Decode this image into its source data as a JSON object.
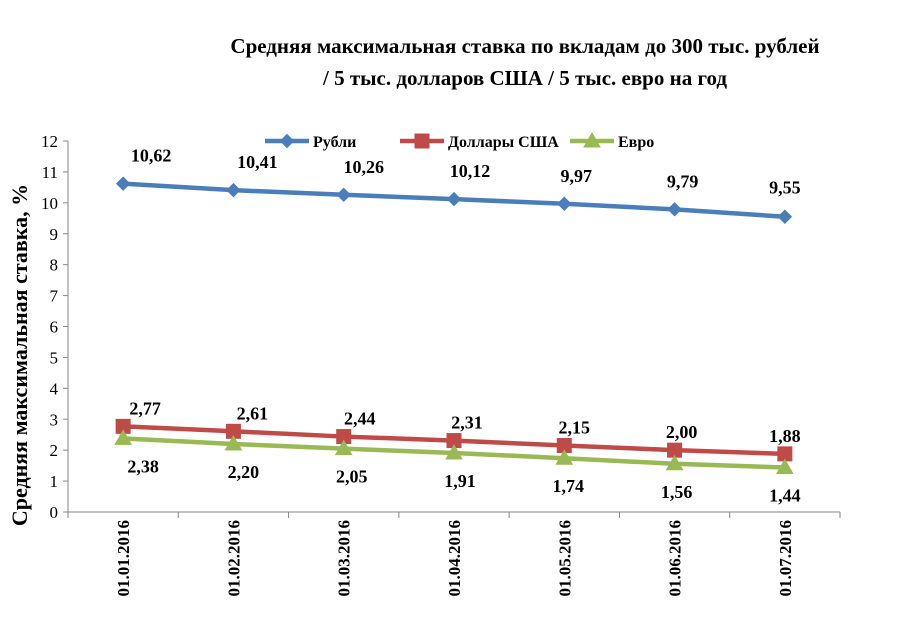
{
  "chart_data": {
    "type": "line",
    "title_lines": [
      "Средняя максимальная ставка по вкладам до 300 тыс. рублей",
      "/ 5 тыс. долларов США / 5 тыс. евро на год"
    ],
    "xlabel": "",
    "ylabel": "Средняя максимальная ставка, %",
    "ylim": [
      0,
      12
    ],
    "yticks": [
      0,
      1,
      2,
      3,
      4,
      5,
      6,
      7,
      8,
      9,
      10,
      11,
      12
    ],
    "grid": false,
    "legend_position": "top",
    "categories": [
      "01.01.2016",
      "01.02.2016",
      "01.03.2016",
      "01.04.2016",
      "01.05.2016",
      "01.06.2016",
      "01.07.2016"
    ],
    "series": [
      {
        "name": "Рубли",
        "color": "#4a7ebb",
        "marker": "diamond",
        "values": [
          10.62,
          10.41,
          10.26,
          10.12,
          9.97,
          9.79,
          9.55
        ],
        "labels": [
          "10,62",
          "10,41",
          "10,26",
          "10,12",
          "9,97",
          "9,79",
          "9,55"
        ],
        "label_position": "above"
      },
      {
        "name": "Доллары  США",
        "color": "#be4b48",
        "marker": "square",
        "values": [
          2.77,
          2.61,
          2.44,
          2.31,
          2.15,
          2.0,
          1.88
        ],
        "labels": [
          "2,77",
          "2,61",
          "2,44",
          "2,31",
          "2,15",
          "2,00",
          "1,88"
        ],
        "label_position": "above"
      },
      {
        "name": "Евро",
        "color": "#98b954",
        "marker": "triangle",
        "values": [
          2.38,
          2.2,
          2.05,
          1.91,
          1.74,
          1.56,
          1.44
        ],
        "labels": [
          "2,38",
          "2,20",
          "2,05",
          "1,91",
          "1,74",
          "1,56",
          "1,44"
        ],
        "label_position": "below"
      }
    ]
  }
}
